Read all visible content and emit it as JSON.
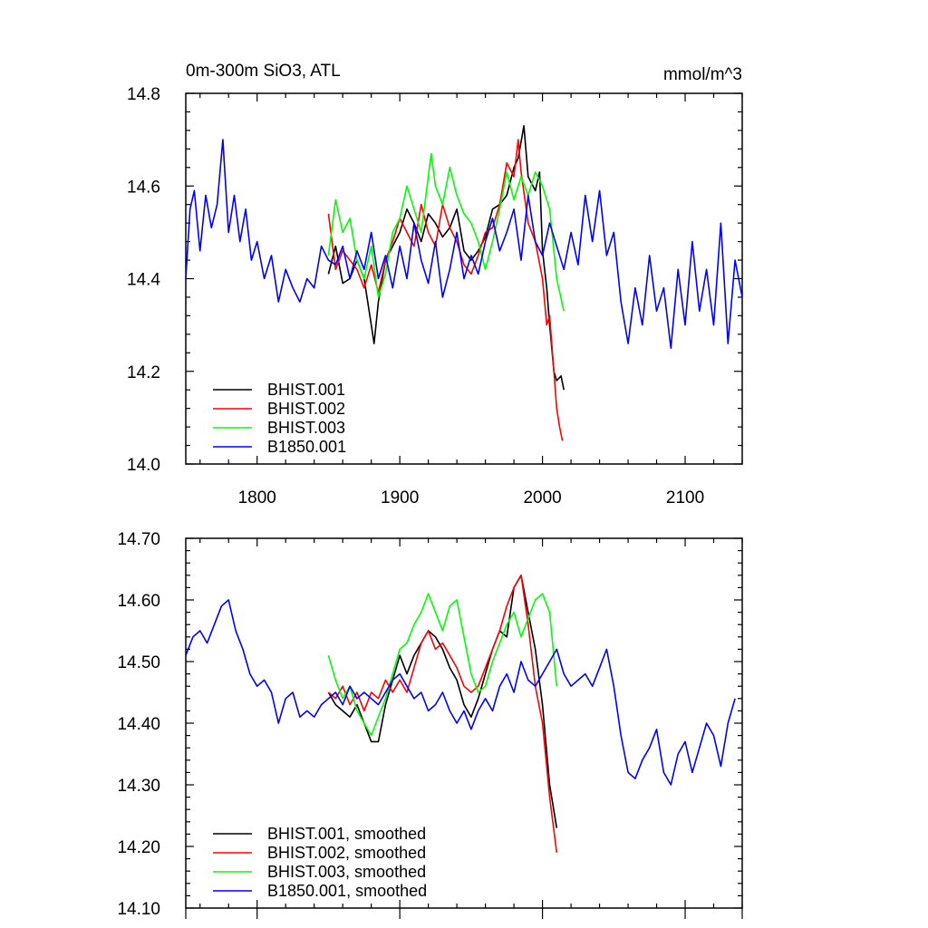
{
  "chart_data": [
    {
      "type": "line",
      "title": "0m-300m SiO3, ATL",
      "units": "mmol/m^3",
      "xlabel": "",
      "ylabel": "",
      "xlim": [
        1750,
        2140
      ],
      "ylim": [
        14.0,
        14.8
      ],
      "x_ticks": [
        "1800",
        "1900",
        "2000",
        "2100"
      ],
      "y_ticks": [
        "14.0",
        "14.2",
        "14.4",
        "14.6",
        "14.8"
      ],
      "legend_position": "bottom-left",
      "series": [
        {
          "name": "BHIST.001",
          "color": "#000000",
          "x": [
            1850,
            1855,
            1860,
            1865,
            1870,
            1875,
            1880,
            1882,
            1885,
            1890,
            1895,
            1900,
            1905,
            1910,
            1915,
            1920,
            1925,
            1930,
            1935,
            1940,
            1945,
            1950,
            1955,
            1960,
            1965,
            1970,
            1975,
            1980,
            1983,
            1987,
            1990,
            1995,
            1998,
            2000,
            2003,
            2005,
            2008,
            2010,
            2013,
            2015
          ],
          "values": [
            14.41,
            14.47,
            14.39,
            14.4,
            14.44,
            14.4,
            14.3,
            14.26,
            14.35,
            14.44,
            14.47,
            14.5,
            14.55,
            14.52,
            14.48,
            14.54,
            14.52,
            14.49,
            14.51,
            14.55,
            14.46,
            14.44,
            14.46,
            14.49,
            14.55,
            14.56,
            14.58,
            14.64,
            14.66,
            14.73,
            14.62,
            14.59,
            14.63,
            14.46,
            14.38,
            14.3,
            14.2,
            14.18,
            14.19,
            14.16
          ]
        },
        {
          "name": "BHIST.002",
          "color": "#ff0000",
          "x": [
            1850,
            1855,
            1860,
            1865,
            1870,
            1875,
            1880,
            1885,
            1890,
            1895,
            1900,
            1905,
            1910,
            1915,
            1920,
            1925,
            1930,
            1935,
            1940,
            1945,
            1950,
            1955,
            1960,
            1965,
            1970,
            1975,
            1980,
            1983,
            1985,
            1990,
            1995,
            2000,
            2003,
            2005,
            2008,
            2010,
            2012,
            2014
          ],
          "values": [
            14.54,
            14.42,
            14.46,
            14.44,
            14.42,
            14.38,
            14.43,
            14.37,
            14.44,
            14.48,
            14.53,
            14.5,
            14.47,
            14.56,
            14.5,
            14.47,
            14.56,
            14.51,
            14.48,
            14.43,
            14.41,
            14.45,
            14.5,
            14.51,
            14.56,
            14.65,
            14.62,
            14.7,
            14.63,
            14.52,
            14.48,
            14.4,
            14.3,
            14.32,
            14.2,
            14.12,
            14.08,
            14.05
          ]
        },
        {
          "name": "BHIST.003",
          "color": "#00ff00",
          "x": [
            1850,
            1855,
            1860,
            1865,
            1870,
            1875,
            1880,
            1885,
            1890,
            1895,
            1900,
            1905,
            1910,
            1915,
            1920,
            1922,
            1925,
            1930,
            1935,
            1940,
            1945,
            1950,
            1955,
            1960,
            1965,
            1970,
            1975,
            1980,
            1985,
            1990,
            1995,
            2000,
            2005,
            2010,
            2015
          ],
          "values": [
            14.45,
            14.57,
            14.5,
            14.53,
            14.44,
            14.4,
            14.47,
            14.36,
            14.41,
            14.5,
            14.53,
            14.6,
            14.55,
            14.5,
            14.62,
            14.67,
            14.6,
            14.56,
            14.64,
            14.58,
            14.54,
            14.52,
            14.48,
            14.42,
            14.48,
            14.55,
            14.63,
            14.57,
            14.62,
            14.58,
            14.63,
            14.6,
            14.55,
            14.4,
            14.33
          ]
        },
        {
          "name": "B1850.001",
          "color": "#0000ff",
          "x": [
            1750,
            1753,
            1756,
            1760,
            1764,
            1768,
            1772,
            1776,
            1780,
            1784,
            1788,
            1792,
            1796,
            1800,
            1805,
            1810,
            1815,
            1820,
            1825,
            1830,
            1835,
            1840,
            1845,
            1850,
            1855,
            1860,
            1865,
            1870,
            1875,
            1880,
            1885,
            1890,
            1895,
            1900,
            1905,
            1910,
            1915,
            1920,
            1925,
            1930,
            1935,
            1940,
            1945,
            1950,
            1955,
            1960,
            1965,
            1970,
            1975,
            1980,
            1985,
            1990,
            1995,
            2000,
            2005,
            2010,
            2015,
            2020,
            2025,
            2030,
            2035,
            2040,
            2045,
            2050,
            2055,
            2060,
            2065,
            2070,
            2075,
            2080,
            2085,
            2090,
            2095,
            2100,
            2105,
            2110,
            2115,
            2120,
            2125,
            2130,
            2135,
            2140
          ],
          "values": [
            14.4,
            14.55,
            14.59,
            14.46,
            14.58,
            14.51,
            14.56,
            14.7,
            14.5,
            14.58,
            14.48,
            14.55,
            14.44,
            14.48,
            14.4,
            14.45,
            14.35,
            14.42,
            14.38,
            14.35,
            14.4,
            14.38,
            14.47,
            14.44,
            14.43,
            14.47,
            14.4,
            14.46,
            14.42,
            14.5,
            14.4,
            14.45,
            14.38,
            14.47,
            14.4,
            14.52,
            14.44,
            14.39,
            14.48,
            14.36,
            14.42,
            14.5,
            14.4,
            14.45,
            14.41,
            14.48,
            14.53,
            14.46,
            14.5,
            14.55,
            14.44,
            14.58,
            14.48,
            14.45,
            14.52,
            14.47,
            14.42,
            14.5,
            14.43,
            14.58,
            14.48,
            14.59,
            14.45,
            14.5,
            14.35,
            14.26,
            14.38,
            14.3,
            14.45,
            14.33,
            14.38,
            14.25,
            14.42,
            14.3,
            14.48,
            14.33,
            14.42,
            14.3,
            14.52,
            14.26,
            14.44,
            14.36
          ]
        }
      ]
    },
    {
      "type": "line",
      "title": "",
      "xlabel": "",
      "ylabel": "",
      "xlim": [
        1750,
        2140
      ],
      "ylim": [
        14.1,
        14.7
      ],
      "y_ticks": [
        "14.10",
        "14.20",
        "14.30",
        "14.40",
        "14.50",
        "14.60",
        "14.70"
      ],
      "legend_position": "bottom-left",
      "series": [
        {
          "name": "BHIST.001, smoothed",
          "color": "#000000",
          "x": [
            1850,
            1855,
            1860,
            1865,
            1870,
            1875,
            1880,
            1885,
            1890,
            1895,
            1900,
            1905,
            1910,
            1915,
            1920,
            1925,
            1930,
            1935,
            1940,
            1945,
            1950,
            1955,
            1960,
            1965,
            1970,
            1975,
            1980,
            1985,
            1990,
            1995,
            2000,
            2005,
            2010
          ],
          "values": [
            14.45,
            14.43,
            14.42,
            14.41,
            14.43,
            14.4,
            14.37,
            14.37,
            14.43,
            14.47,
            14.51,
            14.48,
            14.51,
            14.53,
            14.55,
            14.54,
            14.52,
            14.49,
            14.47,
            14.43,
            14.41,
            14.44,
            14.48,
            14.52,
            14.55,
            14.54,
            14.62,
            14.64,
            14.58,
            14.52,
            14.43,
            14.3,
            14.23
          ]
        },
        {
          "name": "BHIST.002, smoothed",
          "color": "#ff0000",
          "x": [
            1850,
            1855,
            1860,
            1865,
            1870,
            1875,
            1880,
            1885,
            1890,
            1895,
            1900,
            1905,
            1910,
            1915,
            1920,
            1925,
            1930,
            1935,
            1940,
            1945,
            1950,
            1955,
            1960,
            1965,
            1970,
            1975,
            1980,
            1985,
            1990,
            1995,
            2000,
            2005,
            2010
          ],
          "values": [
            14.45,
            14.44,
            14.46,
            14.43,
            14.45,
            14.42,
            14.45,
            14.44,
            14.47,
            14.45,
            14.47,
            14.45,
            14.49,
            14.53,
            14.55,
            14.52,
            14.53,
            14.51,
            14.49,
            14.46,
            14.45,
            14.46,
            14.49,
            14.52,
            14.55,
            14.59,
            14.62,
            14.64,
            14.56,
            14.46,
            14.4,
            14.28,
            14.19
          ]
        },
        {
          "name": "BHIST.003, smoothed",
          "color": "#00ff00",
          "x": [
            1850,
            1855,
            1860,
            1865,
            1870,
            1875,
            1880,
            1885,
            1890,
            1895,
            1900,
            1905,
            1910,
            1915,
            1920,
            1925,
            1930,
            1935,
            1940,
            1945,
            1950,
            1955,
            1960,
            1965,
            1970,
            1975,
            1980,
            1985,
            1990,
            1995,
            2000,
            2005,
            2010
          ],
          "values": [
            14.51,
            14.47,
            14.44,
            14.46,
            14.42,
            14.4,
            14.38,
            14.41,
            14.44,
            14.48,
            14.52,
            14.53,
            14.56,
            14.58,
            14.61,
            14.58,
            14.55,
            14.59,
            14.6,
            14.54,
            14.48,
            14.45,
            14.46,
            14.5,
            14.53,
            14.56,
            14.58,
            14.54,
            14.57,
            14.6,
            14.61,
            14.58,
            14.46
          ]
        },
        {
          "name": "B1850.001, smoothed",
          "color": "#0000ff",
          "x": [
            1750,
            1755,
            1760,
            1765,
            1770,
            1775,
            1780,
            1785,
            1790,
            1795,
            1800,
            1805,
            1810,
            1815,
            1820,
            1825,
            1830,
            1835,
            1840,
            1845,
            1850,
            1855,
            1860,
            1865,
            1870,
            1875,
            1880,
            1885,
            1890,
            1895,
            1900,
            1905,
            1910,
            1915,
            1920,
            1925,
            1930,
            1935,
            1940,
            1945,
            1950,
            1955,
            1960,
            1965,
            1970,
            1975,
            1980,
            1985,
            1990,
            1995,
            2000,
            2005,
            2010,
            2015,
            2020,
            2025,
            2030,
            2035,
            2040,
            2045,
            2050,
            2055,
            2060,
            2065,
            2070,
            2075,
            2080,
            2085,
            2090,
            2095,
            2100,
            2105,
            2110,
            2115,
            2120,
            2125,
            2130,
            2135
          ],
          "values": [
            14.51,
            14.54,
            14.55,
            14.53,
            14.56,
            14.59,
            14.6,
            14.55,
            14.52,
            14.48,
            14.46,
            14.47,
            14.45,
            14.4,
            14.44,
            14.45,
            14.41,
            14.42,
            14.41,
            14.43,
            14.44,
            14.45,
            14.43,
            14.46,
            14.44,
            14.45,
            14.44,
            14.43,
            14.45,
            14.47,
            14.48,
            14.46,
            14.44,
            14.45,
            14.42,
            14.43,
            14.45,
            14.42,
            14.4,
            14.42,
            14.39,
            14.42,
            14.44,
            14.42,
            14.46,
            14.48,
            14.45,
            14.5,
            14.47,
            14.46,
            14.48,
            14.5,
            14.52,
            14.48,
            14.46,
            14.47,
            14.48,
            14.46,
            14.49,
            14.52,
            14.46,
            14.38,
            14.32,
            14.31,
            14.34,
            14.36,
            14.39,
            14.32,
            14.3,
            14.35,
            14.37,
            14.32,
            14.36,
            14.4,
            14.38,
            14.33,
            14.4,
            14.44
          ]
        }
      ]
    }
  ]
}
